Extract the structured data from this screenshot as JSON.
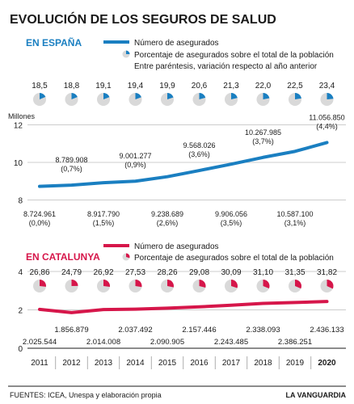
{
  "title": "EVOLUCIÓN DE LOS SEGUROS DE SALUD",
  "footer": {
    "sources": "FUENTES:  ICEA, Unespa y elaboración propia",
    "brand": "LA VANGUARDIA"
  },
  "colors": {
    "spain": "#1a7fc1",
    "catalonia": "#d6164a",
    "text": "#1a1a1a",
    "grid": "#cccccc",
    "pie_bg": "#d9d9d9"
  },
  "chart_data": [
    {
      "type": "line",
      "region_label": "EN ESPAÑA",
      "legend": {
        "series_label": "Número de asegurados",
        "pie_label": "Porcentaje de asegurados sobre el total de la población",
        "note": "Entre paréntesis, variación respecto al año anterior"
      },
      "y_unit_label": "Millones",
      "y_ticks": [
        "8",
        "10",
        "12"
      ],
      "ylim": [
        7.5,
        12
      ],
      "x": [
        "2011",
        "2012",
        "2013",
        "2014",
        "2015",
        "2016",
        "2017",
        "2018",
        "2019",
        "2020"
      ],
      "series": [
        {
          "name": "Número de asegurados",
          "values": [
            8724961,
            8789908,
            8917790,
            9001277,
            9238689,
            9568026,
            9906056,
            10267985,
            10587100,
            11056850
          ]
        }
      ],
      "pie_values": [
        18.5,
        18.8,
        19.1,
        19.4,
        19.9,
        20.6,
        21.3,
        22.0,
        22.5,
        23.4
      ],
      "pie_labels": [
        "18,5",
        "18,8",
        "19,1",
        "19,4",
        "19,9",
        "20,6",
        "21,3",
        "22,0",
        "22,5",
        "23,4"
      ],
      "data_labels": [
        "8.724.961",
        "8.789.908",
        "8.917.790",
        "9.001.277",
        "9.238.689",
        "9.568.026",
        "9.906.056",
        "10.267.985",
        "10.587.100",
        "11.056.850"
      ],
      "change_labels": [
        "(0,0%)",
        "(0,7%)",
        "(1,5%)",
        "(0,9%)",
        "(2,6%)",
        "(3,6%)",
        "(3,5%)",
        "(3,7%)",
        "(3,1%)",
        "(4,4%)"
      ]
    },
    {
      "type": "line",
      "region_label": "EN CATALUNYA",
      "legend": {
        "series_label": "Número de asegurados",
        "pie_label": "Porcentaje de asegurados sobre el total de la población"
      },
      "y_ticks": [
        "0",
        "2",
        "4"
      ],
      "ylim": [
        0,
        4.6
      ],
      "x": [
        "2011",
        "2012",
        "2013",
        "2014",
        "2015",
        "2016",
        "2017",
        "2018",
        "2019",
        "2020"
      ],
      "series": [
        {
          "name": "Número de asegurados",
          "values": [
            2025544,
            1856879,
            2014008,
            2037492,
            2090905,
            2157446,
            2243485,
            2338093,
            2386251,
            2436133
          ]
        }
      ],
      "pie_values": [
        26.86,
        24.79,
        26.92,
        27.53,
        28.26,
        29.08,
        30.09,
        31.1,
        31.35,
        31.82
      ],
      "pie_labels": [
        "26,86",
        "24,79",
        "26,92",
        "27,53",
        "28,26",
        "29,08",
        "30,09",
        "31,10",
        "31,35",
        "31,82"
      ],
      "data_labels": [
        "2.025.544",
        "1.856.879",
        "2.014.008",
        "2.037.492",
        "2.090.905",
        "2.157.446",
        "2.243.485",
        "2.338.093",
        "2.386.251",
        "2.436.133"
      ]
    }
  ]
}
